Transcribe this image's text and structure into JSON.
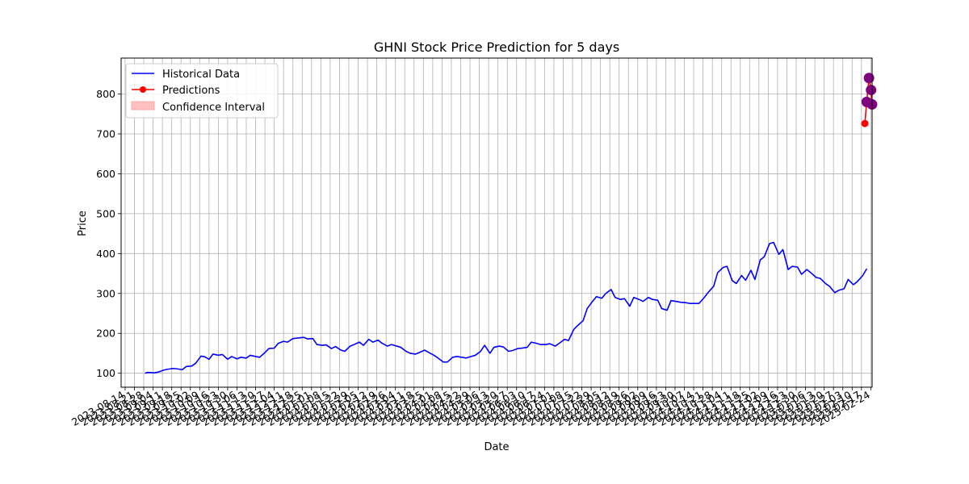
{
  "chart_data": {
    "type": "line",
    "title": "GHNI Stock Price Prediction for 5 days",
    "xlabel": "Date",
    "ylabel": "Price",
    "x_axis": "date",
    "xlim": [
      "2023-08-11",
      "2025-02-25"
    ],
    "ylim": [
      65,
      890
    ],
    "yticks": [
      100,
      200,
      300,
      400,
      500,
      600,
      700,
      800
    ],
    "grid": true,
    "legend": {
      "placement": "top-left",
      "entries": [
        "Historical Data",
        "Predictions",
        "Confidence Interval"
      ]
    },
    "colors": {
      "historical": "#0000ff",
      "predictions": "#ff0000",
      "confidence": "#ffc0c0",
      "prediction_markers_overlay": "#800080",
      "grid": "#b0b0b0"
    },
    "xticks": [
      "2023-08-14",
      "2023-08-21",
      "2023-08-28",
      "2023-09-04",
      "2023-09-11",
      "2023-09-18",
      "2023-09-25",
      "2023-10-02",
      "2023-10-09",
      "2023-10-16",
      "2023-10-23",
      "2023-10-30",
      "2023-11-06",
      "2023-11-13",
      "2023-11-20",
      "2023-11-27",
      "2023-12-04",
      "2023-12-11",
      "2023-12-18",
      "2023-12-25",
      "2024-01-01",
      "2024-01-08",
      "2024-01-15",
      "2024-01-22",
      "2024-01-29",
      "2024-02-05",
      "2024-02-12",
      "2024-02-19",
      "2024-02-26",
      "2024-03-04",
      "2024-03-11",
      "2024-03-18",
      "2024-03-25",
      "2024-04-01",
      "2024-04-08",
      "2024-04-15",
      "2024-04-22",
      "2024-04-29",
      "2024-05-06",
      "2024-05-13",
      "2024-05-20",
      "2024-05-27",
      "2024-06-03",
      "2024-06-10",
      "2024-06-17",
      "2024-06-24",
      "2024-07-01",
      "2024-07-08",
      "2024-07-15",
      "2024-07-22",
      "2024-07-29",
      "2024-08-05",
      "2024-08-12",
      "2024-08-19",
      "2024-08-26",
      "2024-09-02",
      "2024-09-09",
      "2024-09-16",
      "2024-09-23",
      "2024-09-30",
      "2024-10-07",
      "2024-10-14",
      "2024-10-21",
      "2024-10-28",
      "2024-11-04",
      "2024-11-11",
      "2024-11-18",
      "2024-11-25",
      "2024-12-02",
      "2024-12-09",
      "2024-12-16",
      "2024-12-23",
      "2024-12-30",
      "2025-01-06",
      "2025-01-13",
      "2025-01-20",
      "2025-01-27",
      "2025-02-03",
      "2025-02-10",
      "2025-02-17",
      "2025-02-24"
    ],
    "series": [
      {
        "name": "Historical Data",
        "style": "line",
        "points": [
          [
            "2023-08-29",
            100
          ],
          [
            "2023-08-31",
            102
          ],
          [
            "2023-09-05",
            101
          ],
          [
            "2023-09-08",
            103
          ],
          [
            "2023-09-12",
            108
          ],
          [
            "2023-09-15",
            110
          ],
          [
            "2023-09-19",
            112
          ],
          [
            "2023-09-22",
            111
          ],
          [
            "2023-09-26",
            109
          ],
          [
            "2023-09-29",
            117
          ],
          [
            "2023-10-03",
            118
          ],
          [
            "2023-10-06",
            125
          ],
          [
            "2023-10-10",
            143
          ],
          [
            "2023-10-13",
            141
          ],
          [
            "2023-10-16",
            135
          ],
          [
            "2023-10-19",
            148
          ],
          [
            "2023-10-23",
            145
          ],
          [
            "2023-10-26",
            147
          ],
          [
            "2023-10-30",
            135
          ],
          [
            "2023-11-02",
            142
          ],
          [
            "2023-11-06",
            136
          ],
          [
            "2023-11-09",
            140
          ],
          [
            "2023-11-13",
            138
          ],
          [
            "2023-11-16",
            145
          ],
          [
            "2023-11-20",
            142
          ],
          [
            "2023-11-23",
            140
          ],
          [
            "2023-11-27",
            152
          ],
          [
            "2023-11-30",
            162
          ],
          [
            "2023-12-04",
            163
          ],
          [
            "2023-12-07",
            175
          ],
          [
            "2023-12-11",
            180
          ],
          [
            "2023-12-14",
            178
          ],
          [
            "2023-12-18",
            187
          ],
          [
            "2023-12-21",
            188
          ],
          [
            "2023-12-26",
            190
          ],
          [
            "2023-12-29",
            186
          ],
          [
            "2024-01-02",
            187
          ],
          [
            "2024-01-05",
            172
          ],
          [
            "2024-01-09",
            170
          ],
          [
            "2024-01-12",
            171
          ],
          [
            "2024-01-16",
            162
          ],
          [
            "2024-01-19",
            167
          ],
          [
            "2024-01-23",
            158
          ],
          [
            "2024-01-26",
            155
          ],
          [
            "2024-01-30",
            168
          ],
          [
            "2024-02-02",
            172
          ],
          [
            "2024-02-06",
            178
          ],
          [
            "2024-02-09",
            170
          ],
          [
            "2024-02-13",
            185
          ],
          [
            "2024-02-16",
            178
          ],
          [
            "2024-02-20",
            183
          ],
          [
            "2024-02-23",
            175
          ],
          [
            "2024-02-27",
            168
          ],
          [
            "2024-03-01",
            172
          ],
          [
            "2024-03-05",
            168
          ],
          [
            "2024-03-08",
            165
          ],
          [
            "2024-03-12",
            155
          ],
          [
            "2024-03-15",
            150
          ],
          [
            "2024-03-19",
            148
          ],
          [
            "2024-03-22",
            152
          ],
          [
            "2024-03-26",
            158
          ],
          [
            "2024-03-29",
            152
          ],
          [
            "2024-04-02",
            145
          ],
          [
            "2024-04-05",
            138
          ],
          [
            "2024-04-09",
            128
          ],
          [
            "2024-04-12",
            128
          ],
          [
            "2024-04-16",
            140
          ],
          [
            "2024-04-19",
            142
          ],
          [
            "2024-04-23",
            140
          ],
          [
            "2024-04-26",
            138
          ],
          [
            "2024-04-30",
            142
          ],
          [
            "2024-05-03",
            145
          ],
          [
            "2024-05-07",
            155
          ],
          [
            "2024-05-10",
            170
          ],
          [
            "2024-05-14",
            150
          ],
          [
            "2024-05-17",
            165
          ],
          [
            "2024-05-21",
            168
          ],
          [
            "2024-05-24",
            166
          ],
          [
            "2024-05-28",
            155
          ],
          [
            "2024-05-31",
            157
          ],
          [
            "2024-06-04",
            162
          ],
          [
            "2024-06-07",
            163
          ],
          [
            "2024-06-11",
            165
          ],
          [
            "2024-06-14",
            178
          ],
          [
            "2024-06-18",
            175
          ],
          [
            "2024-06-21",
            172
          ],
          [
            "2024-06-25",
            172
          ],
          [
            "2024-06-28",
            174
          ],
          [
            "2024-07-02",
            168
          ],
          [
            "2024-07-05",
            175
          ],
          [
            "2024-07-09",
            185
          ],
          [
            "2024-07-12",
            182
          ],
          [
            "2024-07-16",
            210
          ],
          [
            "2024-07-19",
            220
          ],
          [
            "2024-07-23",
            232
          ],
          [
            "2024-07-26",
            262
          ],
          [
            "2024-07-30",
            280
          ],
          [
            "2024-08-02",
            292
          ],
          [
            "2024-08-06",
            288
          ],
          [
            "2024-08-09",
            300
          ],
          [
            "2024-08-13",
            310
          ],
          [
            "2024-08-16",
            290
          ],
          [
            "2024-08-20",
            285
          ],
          [
            "2024-08-23",
            287
          ],
          [
            "2024-08-27",
            268
          ],
          [
            "2024-08-30",
            290
          ],
          [
            "2024-09-03",
            285
          ],
          [
            "2024-09-06",
            280
          ],
          [
            "2024-09-10",
            290
          ],
          [
            "2024-09-13",
            285
          ],
          [
            "2024-09-17",
            283
          ],
          [
            "2024-09-20",
            262
          ],
          [
            "2024-09-24",
            258
          ],
          [
            "2024-09-27",
            282
          ],
          [
            "2024-10-01",
            280
          ],
          [
            "2024-10-04",
            278
          ],
          [
            "2024-10-08",
            277
          ],
          [
            "2024-10-11",
            275
          ],
          [
            "2024-10-15",
            275
          ],
          [
            "2024-10-18",
            275
          ],
          [
            "2024-10-22",
            290
          ],
          [
            "2024-10-25",
            303
          ],
          [
            "2024-10-29",
            318
          ],
          [
            "2024-11-01",
            352
          ],
          [
            "2024-11-05",
            365
          ],
          [
            "2024-11-08",
            368
          ],
          [
            "2024-11-12",
            332
          ],
          [
            "2024-11-15",
            325
          ],
          [
            "2024-11-19",
            345
          ],
          [
            "2024-11-22",
            333
          ],
          [
            "2024-11-26",
            358
          ],
          [
            "2024-11-29",
            335
          ],
          [
            "2024-12-03",
            384
          ],
          [
            "2024-12-06",
            392
          ],
          [
            "2024-12-10",
            425
          ],
          [
            "2024-12-13",
            428
          ],
          [
            "2024-12-17",
            398
          ],
          [
            "2024-12-20",
            410
          ],
          [
            "2024-12-24",
            360
          ],
          [
            "2024-12-27",
            368
          ],
          [
            "2024-12-31",
            366
          ],
          [
            "2025-01-03",
            348
          ],
          [
            "2025-01-07",
            360
          ],
          [
            "2025-01-10",
            352
          ],
          [
            "2025-01-14",
            340
          ],
          [
            "2025-01-17",
            338
          ],
          [
            "2025-01-21",
            325
          ],
          [
            "2025-01-24",
            318
          ],
          [
            "2025-01-28",
            302
          ],
          [
            "2025-01-31",
            308
          ],
          [
            "2025-02-04",
            312
          ],
          [
            "2025-02-07",
            335
          ],
          [
            "2025-02-11",
            322
          ],
          [
            "2025-02-14",
            330
          ],
          [
            "2025-02-18",
            345
          ],
          [
            "2025-02-21",
            362
          ]
        ]
      },
      {
        "name": "Predictions",
        "style": "line-marker",
        "points": [
          [
            "2025-02-22",
            726
          ],
          [
            "2025-02-23",
            780
          ],
          [
            "2025-02-24",
            840
          ],
          [
            "2025-02-25",
            810
          ],
          [
            "2025-02-25",
            774
          ]
        ]
      },
      {
        "name": "Confidence Interval",
        "style": "band",
        "points": []
      }
    ]
  }
}
